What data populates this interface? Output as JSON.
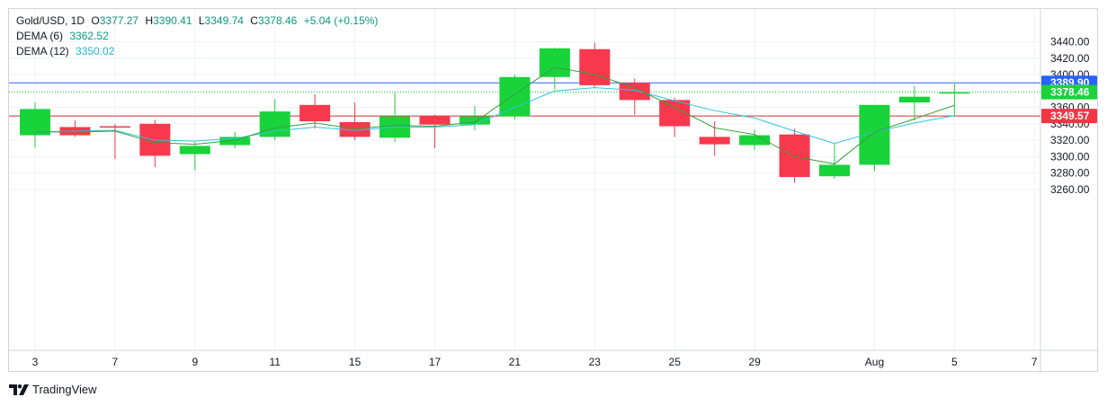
{
  "legend": {
    "symbol": "Gold/USD, 1D",
    "open_label": "O",
    "open": "3377.27",
    "high_label": "H",
    "high": "3390.41",
    "low_label": "L",
    "low": "3349.74",
    "close_label": "C",
    "close": "3378.46",
    "change": "+5.04 (+0.15%)",
    "dema6_label": "DEMA (6)",
    "dema6_value": "3362.52",
    "dema12_label": "DEMA (12)",
    "dema12_value": "3350.02"
  },
  "footer": {
    "brand": "TradingView"
  },
  "colors": {
    "up": "#18d33a",
    "down": "#f7384d",
    "dema6": "#3a9e3a",
    "dema12": "#2ec4e0",
    "blue_line": "#2962ff",
    "red_line": "#d32f2f",
    "last_price": "#18d33a"
  },
  "chart_data": {
    "type": "candlestick",
    "title": "Gold/USD, 1D",
    "ylim": [
      3250,
      3455
    ],
    "y_ticks": [
      3260,
      3280,
      3300,
      3320,
      3340,
      3360,
      3380,
      3400,
      3420,
      3440
    ],
    "x_ticks": [
      {
        "label": "3",
        "index": 0
      },
      {
        "label": "7",
        "index": 2
      },
      {
        "label": "9",
        "index": 4
      },
      {
        "label": "11",
        "index": 6
      },
      {
        "label": "15",
        "index": 8
      },
      {
        "label": "17",
        "index": 10
      },
      {
        "label": "21",
        "index": 12
      },
      {
        "label": "23",
        "index": 14
      },
      {
        "label": "25",
        "index": 16
      },
      {
        "label": "29",
        "index": 18
      },
      {
        "label": "Aug",
        "index": 21
      },
      {
        "label": "5",
        "index": 23
      },
      {
        "label": "7",
        "index": 25
      }
    ],
    "candles": [
      {
        "o": 3326,
        "h": 3366,
        "l": 3311,
        "c": 3358
      },
      {
        "o": 3336,
        "h": 3344,
        "l": 3324,
        "c": 3326
      },
      {
        "o": 3337,
        "h": 3340,
        "l": 3297,
        "c": 3336
      },
      {
        "o": 3340,
        "h": 3345,
        "l": 3287,
        "c": 3301
      },
      {
        "o": 3303,
        "h": 3318,
        "l": 3283,
        "c": 3313
      },
      {
        "o": 3314,
        "h": 3330,
        "l": 3310,
        "c": 3324
      },
      {
        "o": 3324,
        "h": 3370,
        "l": 3320,
        "c": 3355
      },
      {
        "o": 3363,
        "h": 3376,
        "l": 3334,
        "c": 3343
      },
      {
        "o": 3342,
        "h": 3366,
        "l": 3320,
        "c": 3324
      },
      {
        "o": 3323,
        "h": 3378,
        "l": 3318,
        "c": 3349
      },
      {
        "o": 3349,
        "h": 3351,
        "l": 3310,
        "c": 3339
      },
      {
        "o": 3339,
        "h": 3362,
        "l": 3332,
        "c": 3349
      },
      {
        "o": 3349,
        "h": 3400,
        "l": 3345,
        "c": 3397
      },
      {
        "o": 3397,
        "h": 3433,
        "l": 3382,
        "c": 3432
      },
      {
        "o": 3431,
        "h": 3439,
        "l": 3384,
        "c": 3387
      },
      {
        "o": 3390,
        "h": 3395,
        "l": 3351,
        "c": 3369
      },
      {
        "o": 3369,
        "h": 3372,
        "l": 3324,
        "c": 3337
      },
      {
        "o": 3324,
        "h": 3343,
        "l": 3301,
        "c": 3315
      },
      {
        "o": 3314,
        "h": 3333,
        "l": 3308,
        "c": 3326
      },
      {
        "o": 3327,
        "h": 3334,
        "l": 3268,
        "c": 3275
      },
      {
        "o": 3276,
        "h": 3315,
        "l": 3273,
        "c": 3290
      },
      {
        "o": 3290,
        "h": 3363,
        "l": 3282,
        "c": 3363
      },
      {
        "o": 3366,
        "h": 3386,
        "l": 3344,
        "c": 3373
      },
      {
        "o": 3377.27,
        "h": 3390.41,
        "l": 3349.74,
        "c": 3378.46
      }
    ],
    "dema6": [
      3330,
      3330,
      3331,
      3317,
      3315,
      3320,
      3335,
      3341,
      3334,
      3338,
      3337,
      3342,
      3376,
      3409,
      3400,
      3384,
      3360,
      3335,
      3327,
      3300,
      3291,
      3330,
      3346,
      3362.52
    ],
    "dema12": [
      3330,
      3331,
      3332,
      3320,
      3319,
      3322,
      3331,
      3336,
      3332,
      3336,
      3336,
      3339,
      3360,
      3380,
      3384,
      3381,
      3368,
      3356,
      3347,
      3331,
      3316,
      3330,
      3341,
      3350.02
    ],
    "horizontal_lines": [
      {
        "label": "3389.90",
        "value": 3389.9,
        "style": "solid",
        "color": "#2962ff"
      },
      {
        "label": "3349.57",
        "value": 3349.57,
        "style": "solid",
        "color": "#d32f2f"
      },
      {
        "label": "3378.46",
        "value": 3378.46,
        "style": "dotted",
        "color": "#18d33a"
      }
    ],
    "grid": true
  }
}
